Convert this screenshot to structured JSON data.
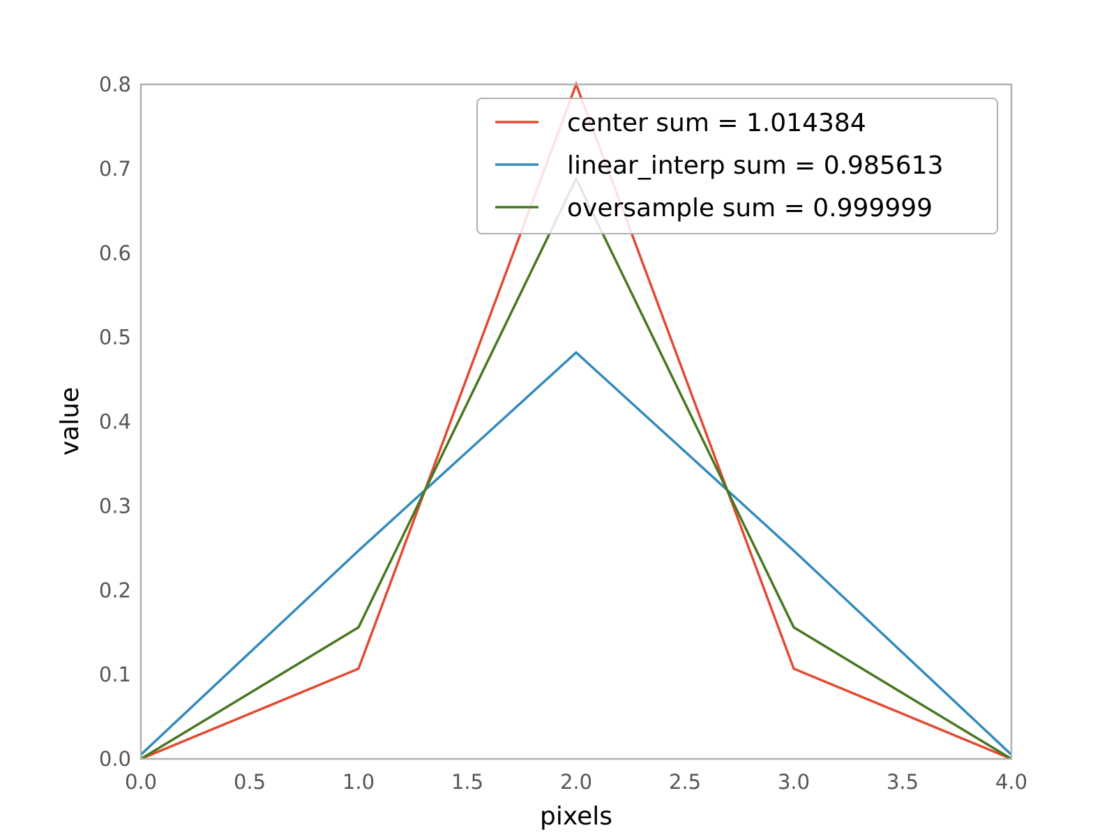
{
  "chart_data": {
    "type": "line",
    "title": "",
    "xlabel": "pixels",
    "ylabel": "value",
    "xlim": [
      0.0,
      4.0
    ],
    "ylim": [
      0.0,
      0.8
    ],
    "xticks": [
      "0.0",
      "0.5",
      "1.0",
      "1.5",
      "2.0",
      "2.5",
      "3.0",
      "3.5",
      "4.0"
    ],
    "yticks": [
      "0.0",
      "0.1",
      "0.2",
      "0.3",
      "0.4",
      "0.5",
      "0.6",
      "0.7",
      "0.8"
    ],
    "grid": false,
    "legend_position": "top-right",
    "x": [
      0,
      1,
      2,
      3,
      4
    ],
    "series": [
      {
        "name": "center sum = 1.014384",
        "color": "#e24a33",
        "values": [
          0.0,
          0.107,
          0.8,
          0.107,
          0.0
        ]
      },
      {
        "name": "linear_interp sum = 0.985613",
        "color": "#348abd",
        "values": [
          0.005,
          0.247,
          0.482,
          0.247,
          0.005
        ]
      },
      {
        "name": "oversample sum = 0.999999",
        "color": "#467821",
        "values": [
          0.0,
          0.156,
          0.688,
          0.156,
          0.0
        ]
      }
    ]
  }
}
